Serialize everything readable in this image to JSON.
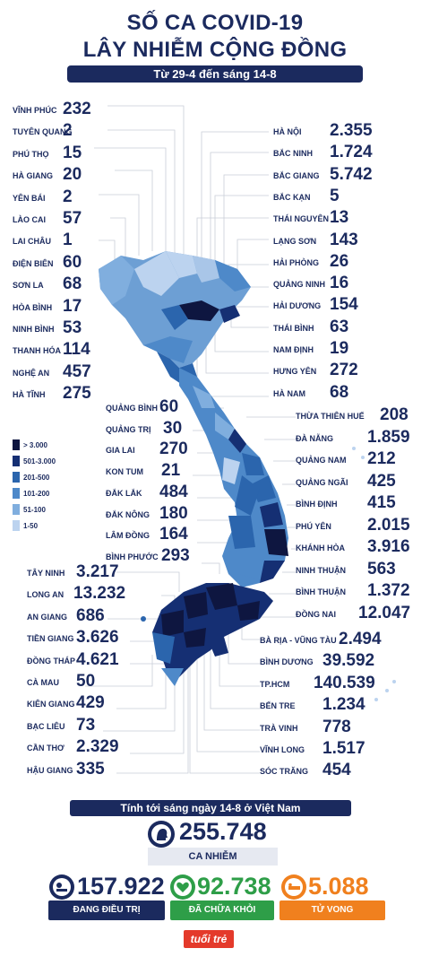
{
  "header": {
    "title_line1": "SỐ CA COVID-19",
    "title_line2": "LÂY NHIỄM CỘNG ĐỒNG",
    "subtitle": "Từ 29-4 đến sáng 14-8"
  },
  "colors": {
    "navy": "#1b2a5e",
    "green": "#2e9e48",
    "orange": "#f0801e",
    "legend": [
      "#0e1640",
      "#152f73",
      "#2b65ad",
      "#4e89c9",
      "#80aede",
      "#bcd3ef"
    ]
  },
  "legend": [
    {
      "label": "> 3.000"
    },
    {
      "label": "501-3.000"
    },
    {
      "label": "201-500"
    },
    {
      "label": "101-200"
    },
    {
      "label": "51-100"
    },
    {
      "label": "1-50"
    }
  ],
  "left_provinces": [
    {
      "name": "VĨNH PHÚC",
      "value": "232"
    },
    {
      "name": "TUYÊN QUANG",
      "value": "2"
    },
    {
      "name": "PHÚ THỌ",
      "value": "15"
    },
    {
      "name": "HÀ GIANG",
      "value": "20"
    },
    {
      "name": "YÊN BÁI",
      "value": "2"
    },
    {
      "name": "LÀO CAI",
      "value": "57"
    },
    {
      "name": "LAI CHÂU",
      "value": "1"
    },
    {
      "name": "ĐIỆN BIÊN",
      "value": "60"
    },
    {
      "name": "SƠN LA",
      "value": "68"
    },
    {
      "name": "HÒA BÌNH",
      "value": "17"
    },
    {
      "name": "NINH BÌNH",
      "value": "53"
    },
    {
      "name": "THANH HÓA",
      "value": "114"
    },
    {
      "name": "NGHỆ AN",
      "value": "457"
    },
    {
      "name": "HÀ TĨNH",
      "value": "275"
    }
  ],
  "right_north": [
    {
      "name": "HÀ NỘI",
      "value": "2.355"
    },
    {
      "name": "BẮC NINH",
      "value": "1.724"
    },
    {
      "name": "BẮC GIANG",
      "value": "5.742"
    },
    {
      "name": "BẮC KẠN",
      "value": "5"
    },
    {
      "name": "THÁI NGUYÊN",
      "value": "13"
    },
    {
      "name": "LẠNG SƠN",
      "value": "143"
    },
    {
      "name": "HẢI PHÒNG",
      "value": "26"
    },
    {
      "name": "QUẢNG NINH",
      "value": "16"
    },
    {
      "name": "HẢI DƯƠNG",
      "value": "154"
    },
    {
      "name": "THÁI BÌNH",
      "value": "63"
    },
    {
      "name": "NAM ĐỊNH",
      "value": "19"
    },
    {
      "name": "HƯNG YÊN",
      "value": "272"
    },
    {
      "name": "HÀ NAM",
      "value": "68"
    }
  ],
  "mid_left": [
    {
      "name": "QUẢNG BÌNH",
      "value": "60"
    },
    {
      "name": "QUẢNG TRỊ",
      "value": "30"
    },
    {
      "name": "GIA LAI",
      "value": "270"
    },
    {
      "name": "KON TUM",
      "value": "21"
    },
    {
      "name": "ĐẮK LẮK",
      "value": "484"
    },
    {
      "name": "ĐẮK NÔNG",
      "value": "180"
    },
    {
      "name": "LÂM ĐỒNG",
      "value": "164"
    },
    {
      "name": "BÌNH PHƯỚC",
      "value": "293"
    }
  ],
  "right_central": [
    {
      "name": "THỪA THIÊN HUẾ",
      "value": "208"
    },
    {
      "name": "ĐÀ NẴNG",
      "value": "1.859"
    },
    {
      "name": "QUẢNG NAM",
      "value": "212"
    },
    {
      "name": "QUẢNG NGÃI",
      "value": "425"
    },
    {
      "name": "BÌNH ĐỊNH",
      "value": "415"
    },
    {
      "name": "PHÚ YÊN",
      "value": "2.015"
    },
    {
      "name": "KHÁNH HÒA",
      "value": "3.916"
    },
    {
      "name": "NINH THUẬN",
      "value": "563"
    },
    {
      "name": "BÌNH THUẬN",
      "value": "1.372"
    },
    {
      "name": "ĐỒNG NAI",
      "value": "12.047"
    }
  ],
  "left_south": [
    {
      "name": "TÂY NINH",
      "value": "3.217"
    },
    {
      "name": "LONG AN",
      "value": "13.232"
    },
    {
      "name": "AN GIANG",
      "value": "686"
    },
    {
      "name": "TIỀN GIANG",
      "value": "3.626"
    },
    {
      "name": "ĐỒNG THÁP",
      "value": "4.621"
    },
    {
      "name": "CÀ MAU",
      "value": "50"
    },
    {
      "name": "KIÊN GIANG",
      "value": "429"
    },
    {
      "name": "BẠC LIÊU",
      "value": "73"
    },
    {
      "name": "CẦN THƠ",
      "value": "2.329"
    },
    {
      "name": "HẬU GIANG",
      "value": "335"
    }
  ],
  "right_south": [
    {
      "name": "BÀ RỊA - VŨNG TÀU",
      "value": "2.494"
    },
    {
      "name": "BÌNH DƯƠNG",
      "value": "39.592"
    },
    {
      "name": "TP.HCM",
      "value": "140.539"
    },
    {
      "name": "BẾN TRE",
      "value": "1.234"
    },
    {
      "name": "TRÀ VINH",
      "value": "778"
    },
    {
      "name": "VĨNH LONG",
      "value": "1.517"
    },
    {
      "name": "SÓC TRĂNG",
      "value": "454"
    }
  ],
  "totals": {
    "heading": "Tính tới sáng ngày 14-8 ở Việt Nam",
    "cases_value": "255.748",
    "cases_label": "CA NHIỄM",
    "treating_value": "157.922",
    "treating_label": "ĐANG ĐIỀU TRỊ",
    "recovered_value": "92.738",
    "recovered_label": "ĐÃ CHỮA KHỎI",
    "deaths_value": "5.088",
    "deaths_label": "TỬ VONG"
  },
  "brand": {
    "logo_text": "tuổi trẻ"
  }
}
